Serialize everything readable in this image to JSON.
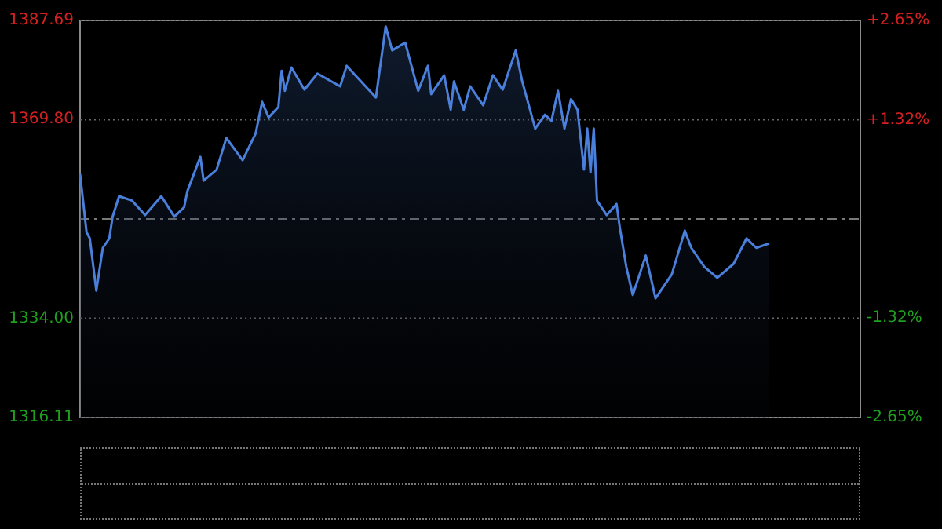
{
  "chart_data": {
    "type": "area",
    "categories": [
      null,
      null,
      null,
      null,
      null,
      null,
      null,
      null,
      null,
      null,
      null,
      null,
      null,
      null,
      null,
      null,
      null,
      null,
      null,
      null,
      null,
      null,
      null,
      null,
      null,
      null,
      null,
      null,
      null,
      null,
      null,
      null,
      null,
      null,
      null,
      null,
      null,
      null,
      null,
      null,
      null,
      null,
      null,
      null,
      null,
      null,
      null,
      null,
      null,
      null,
      null,
      null,
      null,
      null,
      null,
      null,
      null,
      null,
      null,
      null,
      null,
      null,
      null,
      null,
      null,
      null,
      null,
      null,
      null,
      null,
      null,
      null,
      null,
      null,
      null,
      null,
      null,
      null,
      null,
      null,
      null,
      null,
      null,
      null,
      null,
      null,
      null,
      null,
      null,
      null,
      null,
      null,
      null,
      null,
      null,
      null,
      null,
      null,
      null,
      null,
      null,
      null,
      null,
      null,
      null,
      null,
      null,
      null,
      null,
      null,
      null,
      null,
      null,
      null,
      null,
      null,
      null,
      null,
      null,
      null,
      null,
      null,
      null,
      null,
      null,
      null,
      null,
      null,
      null,
      null,
      null,
      null,
      null,
      null,
      null,
      null,
      null,
      null,
      null,
      null,
      null,
      null,
      null,
      null,
      null,
      null,
      null,
      null,
      null,
      null,
      null,
      null,
      null,
      null,
      null,
      null,
      null,
      null,
      null,
      null,
      null,
      null,
      null,
      null,
      null,
      null,
      null,
      null,
      null,
      null,
      null,
      null,
      null,
      null,
      null,
      null,
      null,
      null,
      null,
      null,
      null,
      null,
      null,
      null,
      null,
      null,
      null,
      null,
      null,
      null,
      null,
      null,
      null,
      null,
      null,
      null,
      null,
      null,
      null,
      null,
      null,
      null,
      null,
      null,
      null,
      null,
      null,
      null,
      null,
      null,
      null,
      null,
      null
    ],
    "series": [
      {
        "color": "#4a80dc",
        "values": [
          1360.0,
          null,
          1349.5,
          1348.4,
          null,
          1339.0,
          null,
          1346.7,
          null,
          1348.4,
          1352.3,
          null,
          1356.0,
          null,
          null,
          null,
          1355.2,
          null,
          null,
          null,
          1352.6,
          null,
          null,
          null,
          null,
          1356.0,
          null,
          null,
          null,
          1352.3,
          null,
          null,
          1354.0,
          1356.9,
          null,
          null,
          null,
          1363.1,
          1358.8,
          null,
          null,
          null,
          1360.8,
          null,
          null,
          1366.5,
          null,
          null,
          null,
          null,
          1362.5,
          null,
          null,
          null,
          1367.3,
          null,
          1373.0,
          null,
          1370.2,
          null,
          null,
          1372.1,
          1378.6,
          1375.0,
          null,
          1379.2,
          null,
          null,
          null,
          1375.2,
          null,
          null,
          null,
          1378.1,
          null,
          null,
          null,
          null,
          null,
          null,
          1375.8,
          null,
          1379.5,
          null,
          null,
          null,
          null,
          null,
          null,
          null,
          null,
          1373.8,
          null,
          null,
          1386.6,
          null,
          1382.3,
          null,
          null,
          null,
          1383.7,
          null,
          null,
          null,
          1375.0,
          null,
          null,
          1379.5,
          1374.4,
          null,
          null,
          null,
          1377.8,
          null,
          1371.6,
          1376.7,
          null,
          null,
          1371.6,
          null,
          1375.8,
          null,
          null,
          null,
          1372.4,
          null,
          null,
          1377.8,
          null,
          null,
          1375.2,
          null,
          null,
          null,
          1382.3,
          null,
          1376.7,
          null,
          null,
          null,
          1368.2,
          null,
          null,
          1370.7,
          null,
          1369.6,
          null,
          1375.0,
          null,
          1368.2,
          null,
          1373.5,
          null,
          1371.6,
          null,
          1360.8,
          1368.2,
          1360.3,
          1368.2,
          1355.2,
          null,
          null,
          1352.6,
          null,
          null,
          1354.6,
          1350.4,
          null,
          1343.3,
          null,
          1338.2,
          null,
          null,
          null,
          1345.3,
          null,
          null,
          1337.6,
          null,
          null,
          null,
          null,
          1341.9,
          null,
          null,
          null,
          1349.8,
          null,
          1346.7,
          null,
          null,
          null,
          1343.3,
          null,
          null,
          null,
          1341.3,
          null,
          null,
          null,
          null,
          1343.8,
          null,
          null,
          null,
          1348.4,
          null,
          null,
          1346.7,
          null,
          null,
          null,
          1347.5
        ]
      }
    ],
    "ylim": [
      1316.11,
      1387.69
    ],
    "yticks": [
      1316.11,
      {
        "value": 1334,
        "label": "1334.00"
      },
      {
        "value": 1369.8,
        "label": "1369.80"
      },
      1387.69
    ],
    "y2lim": [
      -2.65,
      2.65
    ],
    "y2ticks": [
      {
        "value": -2.65,
        "label": "-2.65%"
      },
      {
        "value": -1.32,
        "label": "-1.32%"
      },
      {
        "value": 1.32,
        "label": "+1.32%"
      },
      {
        "value": 2.65,
        "label": "+2.65%"
      }
    ],
    "ref_lines": [
      {
        "axis": "y",
        "value": 1351.9,
        "color": "#7a7a7a",
        "line_style": "dashed"
      }
    ],
    "grid": "y",
    "tick_labels": "y",
    "line_style": "solid"
  }
}
